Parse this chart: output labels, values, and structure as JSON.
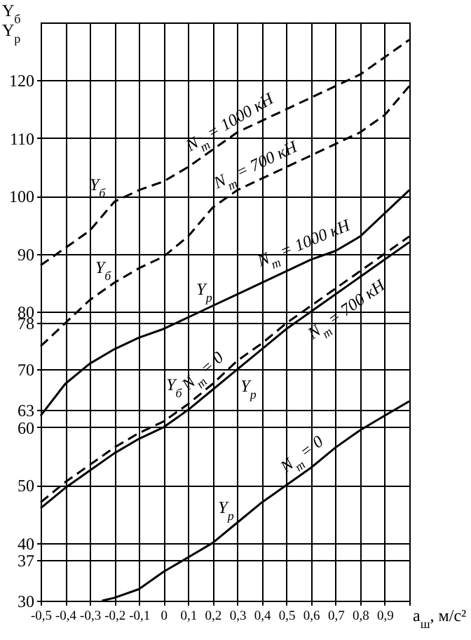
{
  "chart_data": {
    "type": "line",
    "ylabel": "Y$_{б}$\nY$_{р}$",
    "xlabel": "a$_{ш}$, м/с²",
    "x": [
      -0.5,
      -0.4,
      -0.3,
      -0.2,
      -0.1,
      0,
      0.1,
      0.2,
      0.3,
      0.4,
      0.5,
      0.6,
      0.7,
      0.8,
      0.9,
      1.0
    ],
    "series": [
      {
        "name": "N$_{т}$ = 1000 кН",
        "color": "#000000",
        "line_style": "dashed",
        "values": [
          88,
          91,
          94,
          99,
          101,
          102.5,
          105,
          108,
          111,
          113,
          115,
          117,
          119,
          121,
          124,
          127
        ]
      },
      {
        "name": "N$_{т}$ = 700 кН",
        "color": "#000000",
        "line_style": "dashed",
        "values": [
          74,
          78,
          82,
          85,
          87.5,
          89.5,
          93,
          98,
          101,
          103,
          105,
          107,
          109,
          111,
          114,
          119
        ]
      },
      {
        "name": "N$_{т}$ = 1000 кН",
        "color": "#000000",
        "line_style": "solid",
        "values": [
          62,
          67.5,
          71,
          73.5,
          75.5,
          77,
          79,
          81,
          83,
          85,
          87,
          89,
          90.5,
          93,
          97,
          101
        ]
      },
      {
        "name": "N$_{т}$ = 0",
        "color": "#000000",
        "line_style": "dashed",
        "values": [
          47,
          50.5,
          53.5,
          56.5,
          59,
          61,
          64,
          67.5,
          71.5,
          74.5,
          78,
          81,
          84,
          87,
          90,
          93
        ]
      },
      {
        "name": "N$_{т}$ = 700 кН",
        "color": "#000000",
        "line_style": "solid",
        "values": [
          46,
          49.5,
          52.5,
          55.5,
          58,
          60,
          63,
          66.5,
          70,
          73.5,
          77,
          80,
          83,
          86,
          89,
          92
        ]
      },
      {
        "name": "N$_{т}$ = 0",
        "color": "#000000",
        "line_style": "solid",
        "x": [
          -0.25,
          -0.2,
          -0.1,
          0,
          0.1,
          0.2,
          0.3,
          0.4,
          0.5,
          0.6,
          0.7,
          0.8,
          0.9,
          1.0
        ],
        "values": [
          30,
          30.5,
          32,
          35,
          37.5,
          40,
          43.5,
          47,
          50,
          53,
          56.5,
          59.5,
          62,
          64.5
        ]
      }
    ],
    "annotations": [
      {
        "text": "Y$_{б}$",
        "x": -0.2,
        "y": 99
      },
      {
        "text": "Y$_{б}$",
        "x": -0.2,
        "y": 85
      },
      {
        "text": "Y$_{р}$",
        "x": 0.2,
        "y": 81
      },
      {
        "text": "Y$_{б}$",
        "x": 0.1,
        "y": 64
      },
      {
        "text": "Y$_{р}$",
        "x": 0.3,
        "y": 70
      },
      {
        "text": "Y$_{р}$",
        "x": 0.3,
        "y": 43.5
      }
    ],
    "xlim": [
      -0.5,
      1.0
    ],
    "xticks": [
      {
        "value": -0.5,
        "label": "-0,5"
      },
      {
        "value": -0.4,
        "label": "-0,4"
      },
      {
        "value": -0.3,
        "label": "-0,3"
      },
      {
        "value": -0.2,
        "label": "-0,2"
      },
      {
        "value": -0.1,
        "label": "-0,1"
      },
      {
        "value": 0,
        "label": "0"
      },
      {
        "value": 0.1,
        "label": "0,1"
      },
      {
        "value": 0.2,
        "label": "0,2"
      },
      {
        "value": 0.3,
        "label": "0,3"
      },
      {
        "value": 0.4,
        "label": "0,4"
      },
      {
        "value": 0.5,
        "label": "0,5"
      },
      {
        "value": 0.6,
        "label": "0,6"
      },
      {
        "value": 0.7,
        "label": "0,7"
      },
      {
        "value": 0.8,
        "label": "0,8"
      },
      {
        "value": 0.9,
        "label": "0,9"
      },
      {
        "value": 1.0,
        "label": null
      }
    ],
    "ylim": [
      30,
      130
    ],
    "yticks": [
      30,
      37,
      40,
      50,
      60,
      63,
      70,
      78,
      80,
      90,
      100,
      110,
      120
    ],
    "grid": true,
    "marker": "none"
  }
}
